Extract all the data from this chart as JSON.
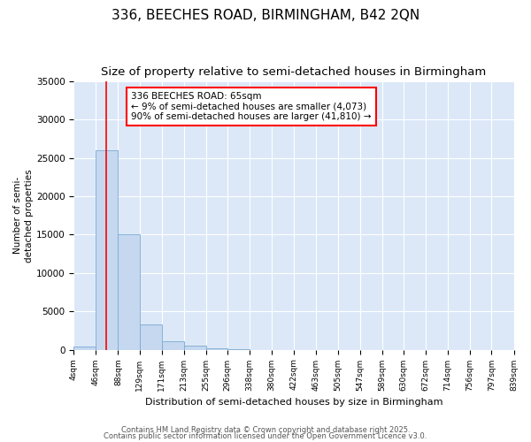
{
  "title": "336, BEECHES ROAD, BIRMINGHAM, B42 2QN",
  "subtitle": "Size of property relative to semi-detached houses in Birmingham",
  "xlabel": "Distribution of semi-detached houses by size in Birmingham",
  "ylabel": "Number of semi-\ndetached properties",
  "property_size": 65,
  "annotation_title": "336 BEECHES ROAD: 65sqm",
  "annotation_line1": "← 9% of semi-detached houses are smaller (4,073)",
  "annotation_line2": "90% of semi-detached houses are larger (41,810) →",
  "footer1": "Contains HM Land Registry data © Crown copyright and database right 2025.",
  "footer2": "Contains public sector information licensed under the Open Government Licence v3.0.",
  "bin_edges": [
    4,
    46,
    88,
    129,
    171,
    213,
    255,
    296,
    338,
    380,
    422,
    463,
    505,
    547,
    589,
    630,
    672,
    714,
    756,
    797,
    839
  ],
  "bin_heights": [
    400,
    26000,
    15100,
    3300,
    1100,
    500,
    150,
    30,
    5,
    2,
    1,
    0,
    0,
    0,
    0,
    0,
    0,
    0,
    0,
    0
  ],
  "bar_color": "#c5d8f0",
  "bar_edge_color": "#7aaad0",
  "line_color": "red",
  "background_color": "#ffffff",
  "plot_background_color": "#dce8f8",
  "grid_color": "white",
  "ylim": [
    0,
    35000
  ],
  "yticks": [
    0,
    5000,
    10000,
    15000,
    20000,
    25000,
    30000,
    35000
  ],
  "annotation_box_color": "white",
  "annotation_box_edge": "red",
  "title_fontsize": 11,
  "subtitle_fontsize": 9.5
}
